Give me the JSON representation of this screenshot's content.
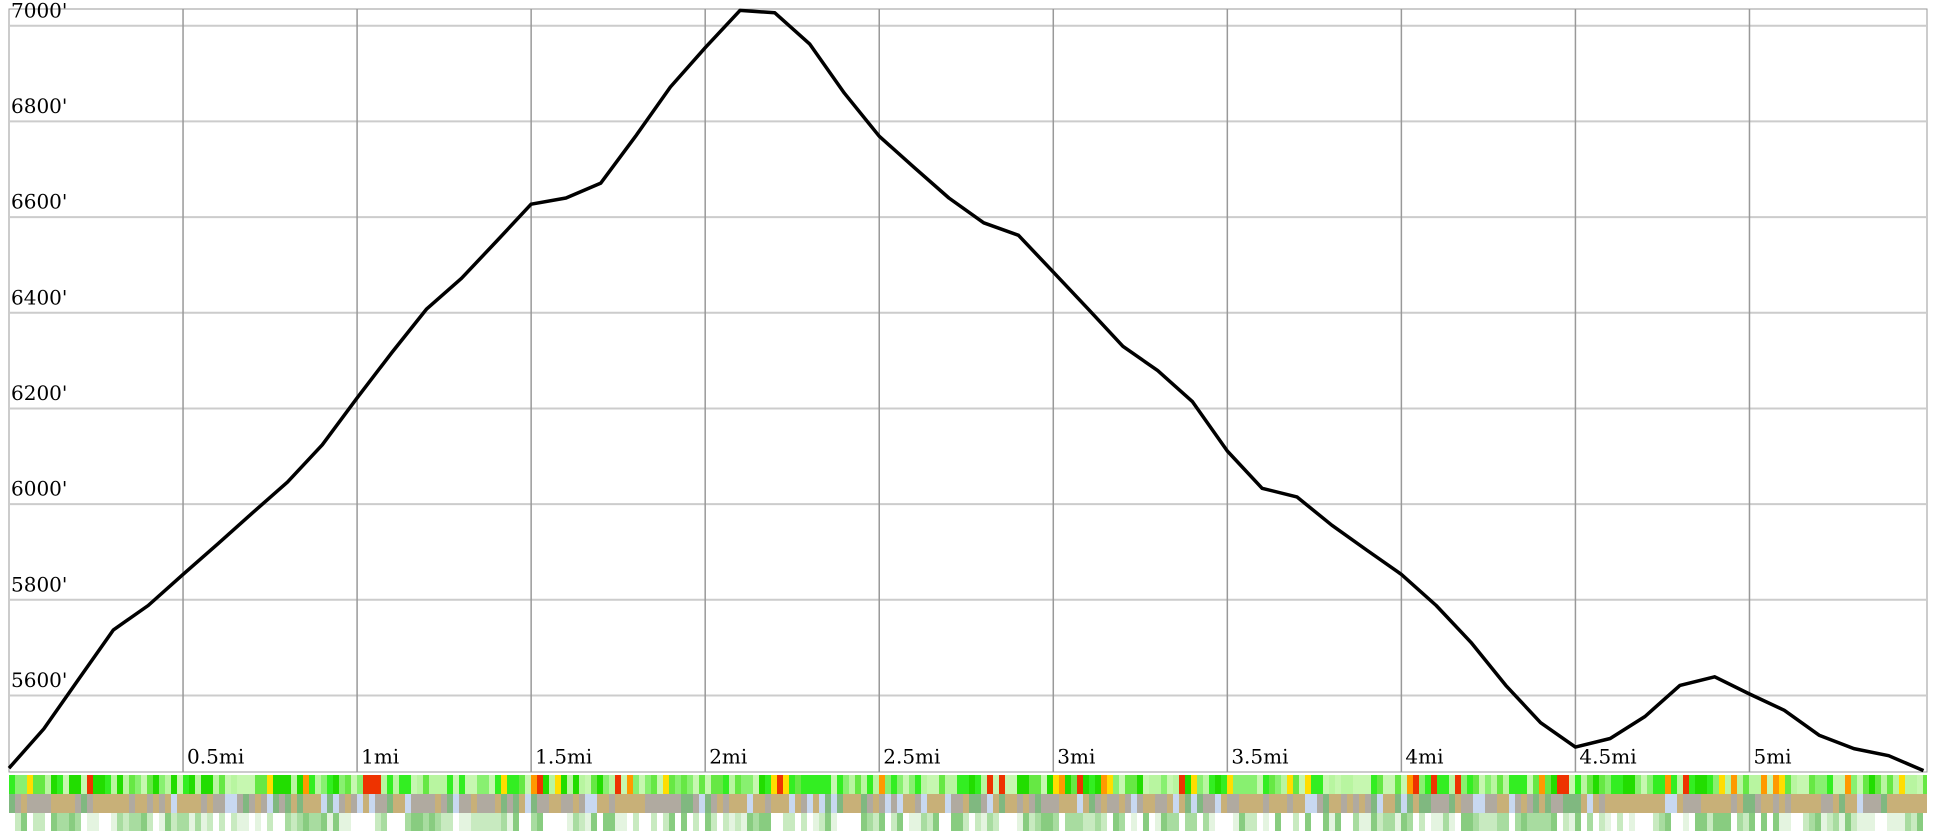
{
  "chart_data": {
    "type": "line",
    "x": [
      0,
      0.1,
      0.2,
      0.3,
      0.4,
      0.5,
      0.6,
      0.7,
      0.8,
      0.9,
      1.0,
      1.1,
      1.2,
      1.3,
      1.4,
      1.5,
      1.6,
      1.7,
      1.8,
      1.9,
      2.0,
      2.1,
      2.2,
      2.3,
      2.4,
      2.5,
      2.6,
      2.7,
      2.8,
      2.9,
      3.0,
      3.1,
      3.2,
      3.3,
      3.4,
      3.5,
      3.6,
      3.7,
      3.8,
      3.9,
      4.0,
      4.1,
      4.2,
      4.3,
      4.4,
      4.5,
      4.6,
      4.7,
      4.8,
      4.9,
      5.0,
      5.1,
      5.2,
      5.3,
      5.4,
      5.5
    ],
    "series": [
      {
        "color": "#000000",
        "values": [
          5448,
          5530,
          5634,
          5737,
          5788,
          5853,
          5917,
          5982,
          6046,
          6124,
          6222,
          6317,
          6408,
          6472,
          6549,
          6627,
          6640,
          6671,
          6769,
          6872,
          6954,
          7032,
          7027,
          6962,
          6859,
          6769,
          6704,
          6640,
          6588,
          6562,
          6485,
          6408,
          6330,
          6279,
          6214,
          6111,
          6033,
          6015,
          5956,
          5904,
          5853,
          5788,
          5711,
          5621,
          5543,
          5492,
          5510,
          5556,
          5621,
          5639,
          5603,
          5569,
          5517,
          5489,
          5474,
          5443
        ]
      }
    ],
    "xlim": [
      0,
      5.51
    ],
    "ylim": [
      5440,
      7035
    ],
    "xticks": [
      {
        "value": 0.5,
        "label": "0.5mi"
      },
      {
        "value": 1,
        "label": "1mi"
      },
      {
        "value": 1.5,
        "label": "1.5mi"
      },
      {
        "value": 2,
        "label": "2mi"
      },
      {
        "value": 2.5,
        "label": "2.5mi"
      },
      {
        "value": 3,
        "label": "3mi"
      },
      {
        "value": 3.5,
        "label": "3.5mi"
      },
      {
        "value": 4,
        "label": "4mi"
      },
      {
        "value": 4.5,
        "label": "4.5mi"
      },
      {
        "value": 5,
        "label": "5mi"
      }
    ],
    "yticks": [
      {
        "value": 5600,
        "label": "5600'"
      },
      {
        "value": 5800,
        "label": "5800'"
      },
      {
        "value": 6000,
        "label": "6000'"
      },
      {
        "value": 6200,
        "label": "6200'"
      },
      {
        "value": 6400,
        "label": "6400'"
      },
      {
        "value": 6600,
        "label": "6600'"
      },
      {
        "value": 6800,
        "label": "6800'"
      },
      {
        "value": 7000,
        "label": "7000'"
      }
    ],
    "grid": true
  }
}
